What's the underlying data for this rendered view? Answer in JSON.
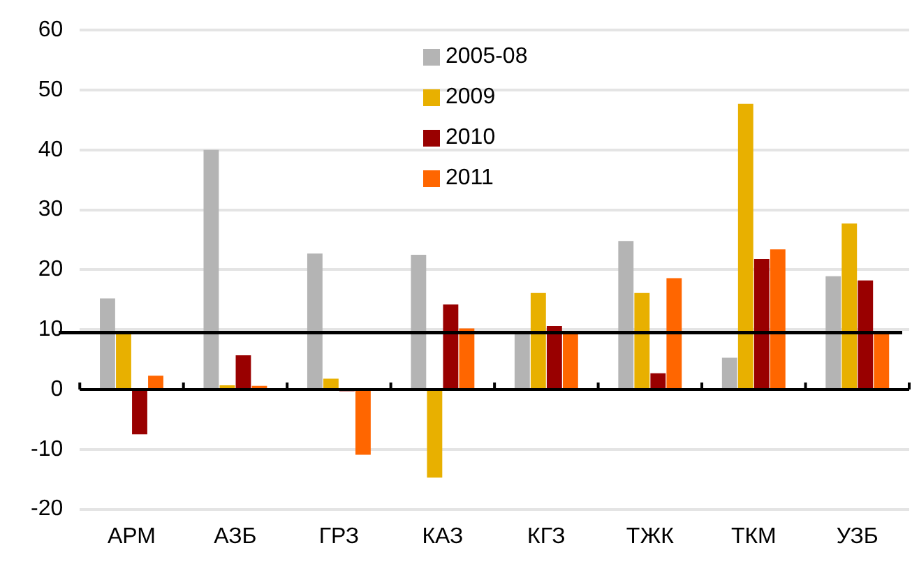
{
  "chart_data": {
    "type": "bar",
    "categories": [
      "АРМ",
      "АЗБ",
      "ГРЗ",
      "КАЗ",
      "КГЗ",
      "ТЖК",
      "ТКМ",
      "УЗБ"
    ],
    "series": [
      {
        "name": "2005-08",
        "color": "#b4b4b4",
        "values": [
          15.2,
          40.0,
          22.7,
          22.5,
          9.5,
          24.8,
          5.3,
          18.9
        ]
      },
      {
        "name": "2009",
        "color": "#e8b000",
        "values": [
          9.5,
          0.7,
          1.8,
          -14.7,
          16.1,
          16.1,
          47.7,
          27.7
        ]
      },
      {
        "name": "2010",
        "color": "#990000",
        "values": [
          -7.5,
          5.7,
          -0.3,
          14.2,
          10.6,
          2.7,
          21.8,
          18.2
        ]
      },
      {
        "name": "2011",
        "color": "#ff6600",
        "values": [
          2.3,
          0.6,
          -10.9,
          10.2,
          9.5,
          18.6,
          23.4,
          9.3
        ]
      }
    ],
    "ylim": [
      -20,
      60
    ],
    "yticks": [
      -20,
      -10,
      0,
      10,
      20,
      30,
      40,
      50,
      60
    ],
    "grid": "y",
    "legend": "top",
    "ref_lines": [
      {
        "axis": "y",
        "value": 9.5,
        "color": "#000000"
      }
    ]
  }
}
